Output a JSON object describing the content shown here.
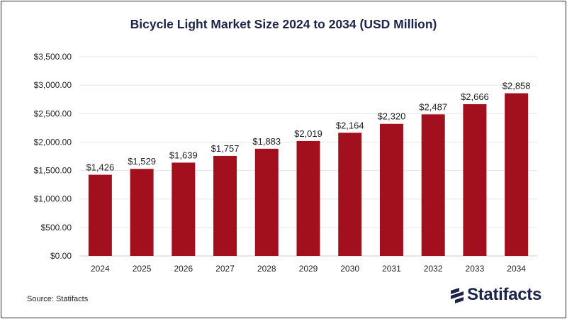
{
  "chart_data": {
    "type": "bar",
    "title": "Bicycle Light Market Size 2024 to 2034 (USD Million)",
    "categories": [
      "2024",
      "2025",
      "2026",
      "2027",
      "2028",
      "2029",
      "2030",
      "2031",
      "2032",
      "2033",
      "2034"
    ],
    "values": [
      1426,
      1529,
      1639,
      1757,
      1883,
      2019,
      2164,
      2320,
      2487,
      2666,
      2858
    ],
    "data_labels": [
      "$1,426",
      "$1,529",
      "$1,639",
      "$1,757",
      "$1,883",
      "$2,019",
      "$2,164",
      "$2,320",
      "$2,487",
      "$2,666",
      "$2,858"
    ],
    "y_ticks": [
      0,
      500,
      1000,
      1500,
      2000,
      2500,
      3000,
      3500
    ],
    "y_tick_labels": [
      "$0.00",
      "$500.00",
      "$1,000.00",
      "$1,500.00",
      "$2,000.00",
      "$2,500.00",
      "$3,000.00",
      "$3,500.00"
    ],
    "ylim": [
      0,
      3500
    ],
    "xlabel": "",
    "ylabel": "",
    "grid": true,
    "legend": "none",
    "bar_color": "#a1101c"
  },
  "footer": {
    "source": "Source: Statifacts",
    "brand": "Statifacts",
    "brand_color": "#1c2448"
  }
}
